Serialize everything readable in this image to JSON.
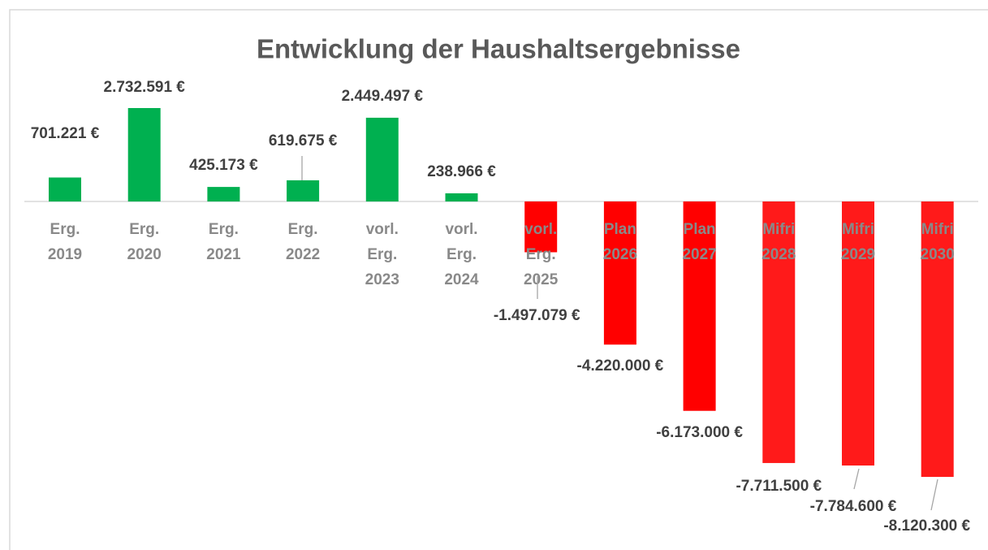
{
  "chart_data": {
    "type": "bar",
    "title": "Entwicklung der Haushaltsergebnisse",
    "categories": [
      [
        "Erg.",
        "2019"
      ],
      [
        "Erg.",
        "2020"
      ],
      [
        "Erg.",
        "2021"
      ],
      [
        "Erg.",
        "2022"
      ],
      [
        "vorl.",
        "Erg.",
        "2023"
      ],
      [
        "vorl.",
        "Erg.",
        "2024"
      ],
      [
        "vorl.",
        "Erg.",
        "2025"
      ],
      [
        "Plan",
        "2026"
      ],
      [
        "Plan",
        "2027"
      ],
      [
        "Mifri",
        "2028"
      ],
      [
        "Mifri",
        "2029"
      ],
      [
        "Mifri",
        "2030"
      ]
    ],
    "values": [
      701221,
      2732591,
      425173,
      619675,
      2449497,
      238966,
      -1497079,
      -4220000,
      -6173000,
      -7711500,
      -7784600,
      -8120300
    ],
    "value_labels": [
      "701.221 €",
      "2.732.591 €",
      "425.173 €",
      "619.675 €",
      "2.449.497 €",
      "238.966 €",
      "-1.497.079 €",
      "-4.220.000 €",
      "-6.173.000 €",
      "-7.711.500 €",
      "-7.784.600 €",
      "-8.120.300 €"
    ],
    "colors": [
      "#00b050",
      "#00b050",
      "#00b050",
      "#00b050",
      "#00b050",
      "#00b050",
      "#ff0000",
      "#ff0000",
      "#ff0000",
      "#ff1a1a",
      "#ff1a1a",
      "#ff1a1a"
    ]
  }
}
